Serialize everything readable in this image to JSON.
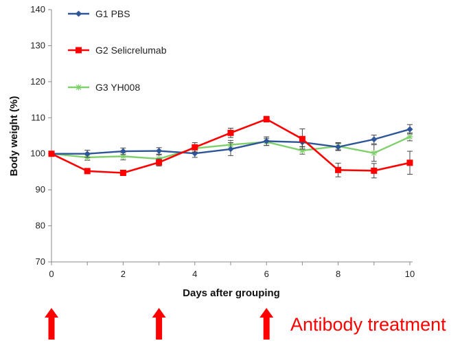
{
  "chart_data": {
    "type": "line",
    "xlabel": "Days after grouping",
    "ylabel": "Body weight (%)",
    "xlim": [
      0,
      10
    ],
    "ylim": [
      70,
      140
    ],
    "xticks": [
      0,
      2,
      4,
      6,
      8,
      10
    ],
    "yticks": [
      70,
      80,
      90,
      100,
      110,
      120,
      130,
      140
    ],
    "grid": false,
    "legend_position": "top-left",
    "x": [
      0,
      1,
      2,
      3,
      4,
      5,
      6,
      7,
      8,
      9,
      10
    ],
    "series": [
      {
        "name": "G1 PBS",
        "color": "#2e5597",
        "marker": "diamond",
        "values": [
          100,
          100,
          100.7,
          100.8,
          100.1,
          101.3,
          103.5,
          103.2,
          101.9,
          104,
          106.8
        ],
        "errors": [
          0.5,
          1.0,
          0.9,
          0.9,
          1.1,
          1.8,
          1.2,
          1.2,
          1.0,
          1.2,
          1.3
        ]
      },
      {
        "name": "G2 Selicrelumab",
        "color": "#ff0000",
        "marker": "square",
        "values": [
          100,
          95.2,
          94.7,
          97.6,
          101.8,
          105.8,
          109.6,
          104.1,
          95.5,
          95.3,
          97.5
        ],
        "errors": [
          0.5,
          0.6,
          0.6,
          1.0,
          1.3,
          1.3,
          0.8,
          2.8,
          1.9,
          2.0,
          3.2
        ]
      },
      {
        "name": "G3 YH008",
        "color": "#7fd06a",
        "marker": "asterisk",
        "values": [
          100,
          99,
          99.3,
          98.6,
          101.5,
          102.5,
          103.3,
          100.9,
          102.1,
          100.2,
          104.7
        ],
        "errors": [
          0.5,
          0.8,
          1.0,
          1.1,
          1.0,
          1.2,
          1.0,
          1.0,
          1.0,
          2.3,
          1.1
        ]
      }
    ],
    "annotations": [
      {
        "text": "Antibody treatment",
        "color": "#ff0000",
        "treatment_days": [
          0,
          3,
          6
        ]
      }
    ]
  }
}
